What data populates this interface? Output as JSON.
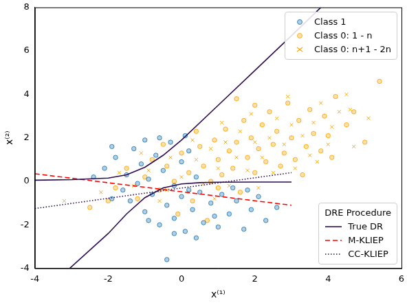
{
  "chart_data": {
    "type": "scatter",
    "x_label": "x⁽¹⁾",
    "y_label": "x⁽²⁾",
    "xlim": [
      -4,
      6
    ],
    "xticks": [
      -4,
      -2,
      0,
      2,
      4,
      6
    ],
    "ylim": [
      -4,
      8
    ],
    "yticks": [
      -4,
      -2,
      0,
      2,
      4,
      6,
      8
    ],
    "grid": false,
    "legend": "upper right",
    "line_legend": {
      "title": "DRE Procedure",
      "legend": "lower right"
    },
    "series": [
      {
        "name": "Class 1",
        "type": "scatter",
        "marker": "circle",
        "color": "#1f77b4",
        "x": [
          -2.1,
          -1.8,
          -1.5,
          -1.3,
          -1.1,
          -0.9,
          -0.7,
          -0.5,
          -0.3,
          -0.2,
          0.0,
          0.2,
          0.4,
          -1.6,
          -2.4,
          -1.0,
          -0.6,
          0.1,
          -1.9,
          -1.2,
          -1.4,
          -1.0,
          -0.8,
          -0.6,
          -0.4,
          -0.2,
          0.0,
          0.1,
          0.3,
          0.5,
          0.6,
          0.8,
          1.0,
          1.1,
          1.3,
          1.5,
          1.7,
          1.9,
          2.1,
          2.3,
          0.4,
          -0.2,
          0.9,
          1.4,
          -0.4,
          -1.9,
          2.6,
          0.2,
          -0.9,
          1.8
        ],
        "values": [
          0.6,
          1.1,
          0.3,
          1.5,
          0.8,
          0.1,
          1.2,
          0.5,
          1.8,
          -0.2,
          0.9,
          1.4,
          0.2,
          -0.4,
          0.2,
          1.9,
          2.0,
          2.1,
          1.6,
          -0.1,
          -0.9,
          -1.4,
          -0.6,
          -2.0,
          -1.1,
          -1.7,
          -0.7,
          -2.3,
          -1.3,
          -0.5,
          -1.9,
          -1.0,
          -2.1,
          -0.6,
          -1.5,
          -0.9,
          -2.2,
          -1.3,
          -0.7,
          -1.8,
          -2.6,
          -2.4,
          -1.6,
          -0.3,
          -3.6,
          -0.8,
          -1.2,
          -0.4,
          -1.8,
          -0.4
        ]
      },
      {
        "name": "Class 0: 1 - n",
        "type": "scatter",
        "marker": "circle",
        "color": "#ffa500",
        "x": [
          -2.5,
          -1.8,
          -1.5,
          -1.2,
          -1.0,
          -0.8,
          -0.6,
          -0.4,
          -0.2,
          0.0,
          0.2,
          0.3,
          0.5,
          0.6,
          0.8,
          0.9,
          1.0,
          1.1,
          1.2,
          1.3,
          1.4,
          1.5,
          1.6,
          1.7,
          1.8,
          1.9,
          2.0,
          2.1,
          2.2,
          2.3,
          2.4,
          2.5,
          2.6,
          2.7,
          2.8,
          2.9,
          3.0,
          3.1,
          3.2,
          3.4,
          3.5,
          3.6,
          3.8,
          3.9,
          4.0,
          4.2,
          4.5,
          4.7,
          5.0,
          5.4,
          -0.1,
          0.7,
          -2.0,
          0.4,
          1.0,
          2.0,
          -0.5,
          3.3,
          4.1,
          1.5
        ],
        "values": [
          -1.2,
          -0.3,
          0.6,
          -0.8,
          0.2,
          1.0,
          -0.4,
          0.7,
          0.0,
          1.3,
          0.4,
          -0.9,
          1.6,
          0.7,
          0.0,
          1.9,
          1.0,
          0.3,
          2.4,
          1.4,
          0.6,
          1.8,
          -0.5,
          2.8,
          1.1,
          2.0,
          0.4,
          1.5,
          2.6,
          0.9,
          3.2,
          1.7,
          2.3,
          0.7,
          1.3,
          3.6,
          2.0,
          1.0,
          2.8,
          1.6,
          3.3,
          2.2,
          1.4,
          3.0,
          2.1,
          3.9,
          2.6,
          3.2,
          1.8,
          4.6,
          -1.5,
          -1.8,
          -0.9,
          2.3,
          -0.3,
          3.5,
          1.7,
          0.3,
          1.1,
          3.8
        ]
      },
      {
        "name": "Class 0: n+1 - 2n",
        "type": "scatter",
        "marker": "x",
        "color": "#ffa500",
        "x": [
          -3.2,
          -2.2,
          -1.7,
          -1.3,
          -0.9,
          -0.6,
          -0.3,
          0.0,
          0.2,
          0.4,
          0.6,
          0.8,
          1.0,
          1.2,
          1.3,
          1.5,
          1.6,
          1.8,
          2.0,
          2.1,
          2.2,
          2.4,
          2.5,
          2.6,
          2.8,
          3.0,
          3.1,
          3.3,
          3.5,
          3.6,
          3.8,
          4.0,
          4.1,
          4.3,
          4.5,
          4.7,
          5.1,
          4.6,
          -1.1,
          0.3,
          1.9,
          2.9,
          0.9,
          -0.4,
          3.7,
          1.1
        ],
        "values": [
          -0.9,
          -0.5,
          0.4,
          -0.2,
          0.5,
          -0.9,
          1.1,
          0.2,
          -0.5,
          1.0,
          -0.1,
          1.5,
          0.6,
          1.8,
          -0.2,
          1.1,
          2.3,
          0.5,
          1.8,
          -0.3,
          1.1,
          2.0,
          0.4,
          2.9,
          1.7,
          2.6,
          0.6,
          2.1,
          1.2,
          2.7,
          3.6,
          1.7,
          2.5,
          3.2,
          4.0,
          1.6,
          2.9,
          3.3,
          1.3,
          1.9,
          3.1,
          3.9,
          -0.8,
          -0.4,
          0.9,
          2.7
        ]
      },
      {
        "name": "True DR",
        "type": "line",
        "line_style": "solid",
        "color": "#2c0b4f",
        "x": [
          -4,
          -3,
          -2,
          -1.5,
          -1,
          -0.5,
          0,
          1,
          2,
          3,
          3.8,
          null,
          -3.05,
          -2,
          -1.5,
          -1,
          -0.5,
          0,
          0.5,
          1,
          2,
          3
        ],
        "values": [
          0.05,
          0.08,
          0.15,
          0.3,
          0.65,
          1.2,
          1.9,
          3.5,
          5.1,
          6.7,
          8,
          null,
          -4,
          -2.4,
          -1.5,
          -0.75,
          -0.3,
          -0.12,
          -0.06,
          -0.04,
          -0.03,
          -0.03
        ]
      },
      {
        "name": "M-KLIEP",
        "type": "line",
        "line_style": "dashed",
        "color": "#ff0000",
        "x": [
          -4,
          3
        ],
        "values": [
          0.35,
          -1.1
        ]
      },
      {
        "name": "CC-KLIEP",
        "type": "line",
        "line_style": "dotted",
        "color": "#2c0b4f",
        "x": [
          -4,
          3
        ],
        "values": [
          -1.25,
          0.4
        ]
      }
    ]
  }
}
